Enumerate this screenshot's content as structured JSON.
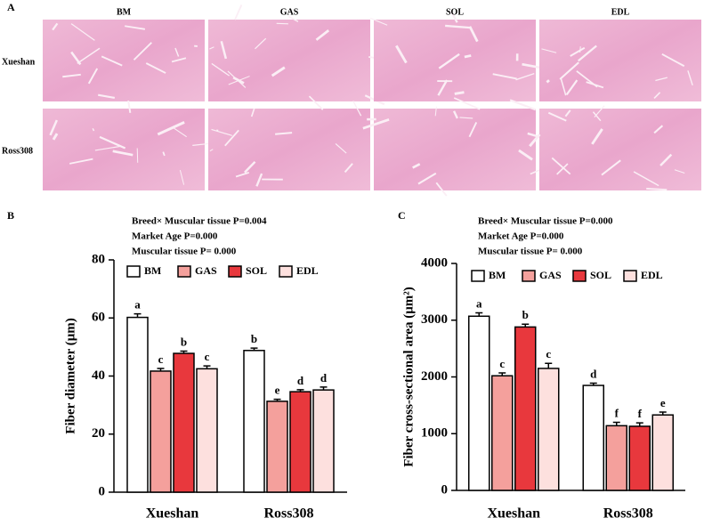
{
  "panel_a": {
    "label": "A",
    "columns": [
      "BM",
      "GAS",
      "SOL",
      "EDL"
    ],
    "rows": [
      "Xueshan",
      "Ross308"
    ]
  },
  "chart_data": [
    {
      "type": "bar",
      "panel": "B",
      "annotations": [
        "Breed× Muscular tissue P=0.004",
        "Market Age    P=0.000",
        "Muscular tissue  P= 0.000"
      ],
      "ylabel": "Fiber diameter (μm)",
      "categories": [
        "Xueshan",
        "Ross308"
      ],
      "series": [
        {
          "name": "BM",
          "color": "#ffffff",
          "values": [
            60.2,
            48.8
          ],
          "errors": [
            1.2,
            0.8
          ],
          "letters": [
            "a",
            "b"
          ]
        },
        {
          "name": "GAS",
          "color": "#f4a09c",
          "values": [
            41.7,
            31.3
          ],
          "errors": [
            0.9,
            0.7
          ],
          "letters": [
            "c",
            "e"
          ]
        },
        {
          "name": "SOL",
          "color": "#e8383d",
          "values": [
            47.8,
            34.6
          ],
          "errors": [
            0.8,
            0.7
          ],
          "letters": [
            "b",
            "d"
          ]
        },
        {
          "name": "EDL",
          "color": "#fde0de",
          "values": [
            42.5,
            35.2
          ],
          "errors": [
            1.0,
            1.0
          ],
          "letters": [
            "c",
            "d"
          ]
        }
      ],
      "ylim": [
        0,
        80
      ],
      "yticks": [
        0,
        20,
        40,
        60,
        80
      ]
    },
    {
      "type": "bar",
      "panel": "C",
      "annotations": [
        "Breed× Muscular tissue P=0.000",
        "Market Age    P=0.000",
        "Muscular tissue  P= 0.000"
      ],
      "ylabel": "Fiber cross-sectional area (μm²)",
      "categories": [
        "Xueshan",
        "Ross308"
      ],
      "series": [
        {
          "name": "BM",
          "color": "#ffffff",
          "values": [
            3070,
            1850
          ],
          "errors": [
            60,
            40
          ],
          "letters": [
            "a",
            "d"
          ]
        },
        {
          "name": "GAS",
          "color": "#f4a09c",
          "values": [
            2020,
            1140
          ],
          "errors": [
            50,
            60
          ],
          "letters": [
            "c",
            "f"
          ]
        },
        {
          "name": "SOL",
          "color": "#e8383d",
          "values": [
            2880,
            1130
          ],
          "errors": [
            50,
            60
          ],
          "letters": [
            "b",
            "f"
          ]
        },
        {
          "name": "EDL",
          "color": "#fde0de",
          "values": [
            2150,
            1330
          ],
          "errors": [
            90,
            50
          ],
          "letters": [
            "c",
            "e"
          ]
        }
      ],
      "ylim": [
        0,
        4000
      ],
      "yticks": [
        0,
        1000,
        2000,
        3000,
        4000
      ]
    }
  ]
}
